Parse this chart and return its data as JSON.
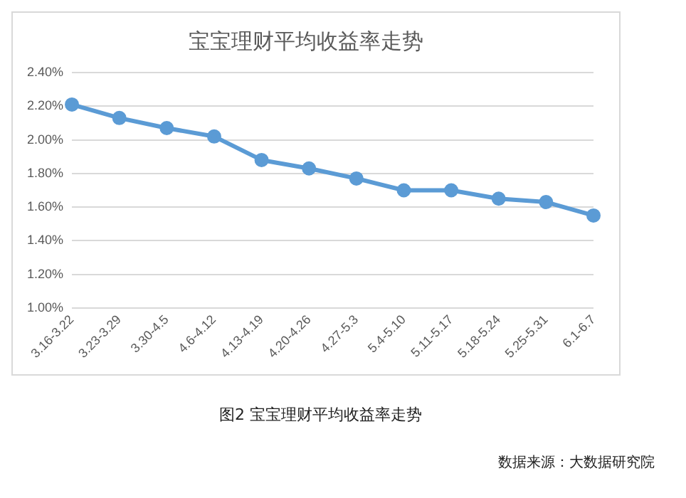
{
  "chart_data": {
    "type": "line",
    "title": "宝宝理财平均收益率走势",
    "categories": [
      "3.16-3.22",
      "3.23-3.29",
      "3.30-4.5",
      "4.6-4.12",
      "4.13-4.19",
      "4.20-4.26",
      "4.27-5.3",
      "5.4-5.10",
      "5.11-5.17",
      "5.18-5.24",
      "5.25-5.31",
      "6.1-6.7"
    ],
    "series": [
      {
        "color": "#5b9bd5",
        "values": [
          2.21,
          2.13,
          2.07,
          2.02,
          1.88,
          1.83,
          1.77,
          1.7,
          1.7,
          1.65,
          1.63,
          1.55
        ]
      }
    ],
    "ylim": [
      1.0,
      2.4
    ],
    "yticks": [
      {
        "value": 1.0,
        "label": "1.00%"
      },
      {
        "value": 1.2,
        "label": "1.20%"
      },
      {
        "value": 1.4,
        "label": "1.40%"
      },
      {
        "value": 1.6,
        "label": "1.60%"
      },
      {
        "value": 1.8,
        "label": "1.80%"
      },
      {
        "value": 2.0,
        "label": "2.00%"
      },
      {
        "value": 2.2,
        "label": "2.20%"
      },
      {
        "value": 2.4,
        "label": "2.40%"
      }
    ],
    "grid": "y",
    "marker": "circle",
    "line_style": "solid",
    "annotations": [
      "图2 宝宝理财平均收益率走势",
      "数据来源：大数据研究院"
    ]
  }
}
